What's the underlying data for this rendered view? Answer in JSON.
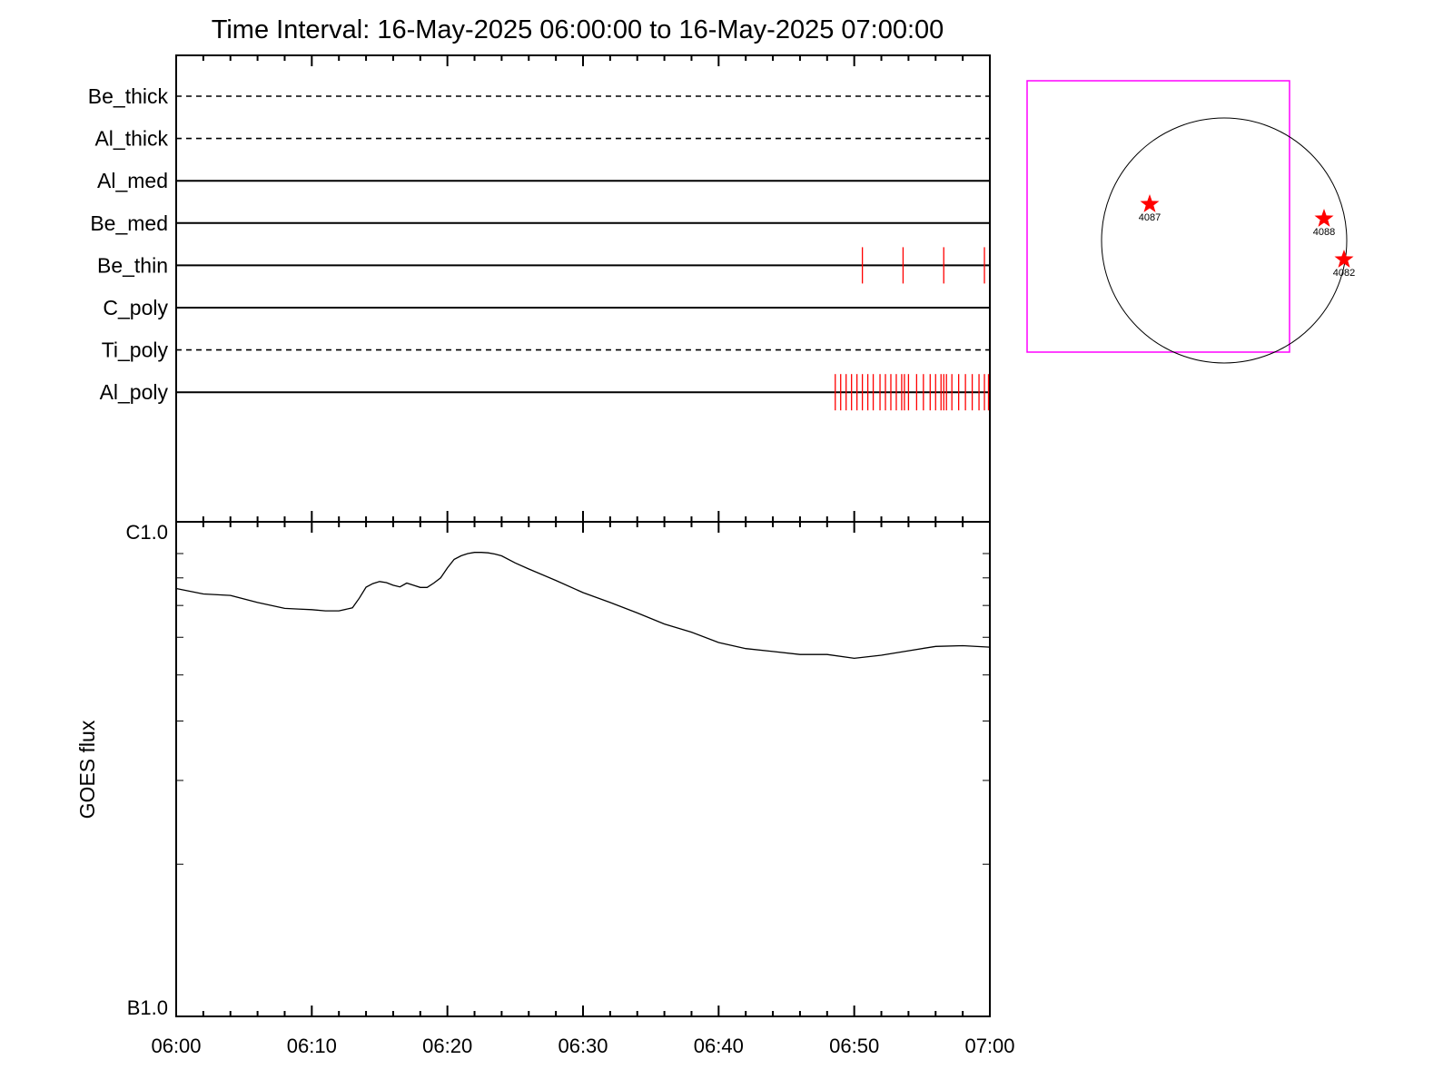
{
  "title": "Time Interval: 16-May-2025 06:00:00 to 16-May-2025 07:00:00",
  "chart_data": [
    {
      "type": "event-raster",
      "rows": [
        {
          "name": "Be_thick",
          "style": "dashed",
          "events": []
        },
        {
          "name": "Al_thick",
          "style": "dashed",
          "events": []
        },
        {
          "name": "Al_med",
          "style": "solid",
          "events": []
        },
        {
          "name": "Be_med",
          "style": "solid",
          "events": []
        },
        {
          "name": "Be_thin",
          "style": "solid",
          "events": [
            50.6,
            53.6,
            56.6,
            59.6
          ]
        },
        {
          "name": "C_poly",
          "style": "solid",
          "events": []
        },
        {
          "name": "Ti_poly",
          "style": "dashed",
          "events": []
        },
        {
          "name": "Al_poly",
          "style": "solid",
          "events": [
            48.6,
            49.0,
            49.4,
            49.8,
            50.2,
            50.6,
            51.0,
            51.4,
            51.9,
            52.3,
            52.7,
            53.1,
            53.5,
            53.7,
            54.0,
            54.6,
            55.1,
            55.6,
            56.0,
            56.4,
            56.6,
            56.8,
            57.2,
            57.7,
            58.2,
            58.7,
            59.2,
            59.6,
            59.9
          ]
        }
      ],
      "event_color": "#ff0000",
      "xlim_minutes": [
        0,
        60
      ]
    },
    {
      "type": "line",
      "ylabel": "GOES flux",
      "y_scale": "log",
      "yticks": [
        "C1.0",
        "B1.0"
      ],
      "ylim": [
        1e-07,
        1e-06
      ],
      "xticks": [
        "06:00",
        "06:10",
        "06:20",
        "06:30",
        "06:40",
        "06:50",
        "07:00"
      ],
      "xlim_minutes": [
        0,
        60
      ],
      "series": [
        {
          "x": [
            0,
            2,
            4,
            6,
            8,
            9,
            10,
            11,
            12,
            13,
            13.5,
            14,
            14.5,
            15,
            15.5,
            16,
            16.5,
            17,
            17.5,
            18,
            18.5,
            19,
            19.5,
            20,
            20.5,
            21,
            21.5,
            22,
            22.5,
            23,
            23.5,
            24,
            25,
            26,
            28,
            30,
            32,
            34,
            36,
            38,
            40,
            42,
            44,
            46,
            48,
            50,
            52,
            54,
            56,
            58,
            60
          ],
          "y": [
            7.6e-07,
            7.4e-07,
            7.35e-07,
            7.1e-07,
            6.9e-07,
            6.88e-07,
            6.86e-07,
            6.82e-07,
            6.82e-07,
            6.92e-07,
            7.25e-07,
            7.65e-07,
            7.78e-07,
            7.86e-07,
            7.82e-07,
            7.72e-07,
            7.66e-07,
            7.8e-07,
            7.72e-07,
            7.64e-07,
            7.64e-07,
            7.8e-07,
            8e-07,
            8.4e-07,
            8.75e-07,
            8.9e-07,
            9e-07,
            9.05e-07,
            9.05e-07,
            9.03e-07,
            8.98e-07,
            8.9e-07,
            8.6e-07,
            8.35e-07,
            7.9e-07,
            7.45e-07,
            7.1e-07,
            6.75e-07,
            6.4e-07,
            6.15e-07,
            5.85e-07,
            5.68e-07,
            5.6e-07,
            5.52e-07,
            5.52e-07,
            5.42e-07,
            5.5e-07,
            5.62e-07,
            5.74e-07,
            5.76e-07,
            5.72e-07
          ]
        }
      ]
    },
    {
      "type": "diagram",
      "description": "solar disk map",
      "active_regions": [
        {
          "label": "4087"
        },
        {
          "label": "4088"
        },
        {
          "label": "4082"
        }
      ],
      "marker_color": "#ff0000",
      "box_color": "#ff00ff"
    }
  ]
}
